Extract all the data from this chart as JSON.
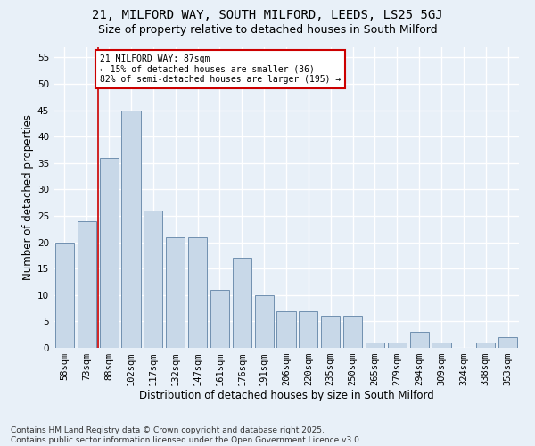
{
  "title1": "21, MILFORD WAY, SOUTH MILFORD, LEEDS, LS25 5GJ",
  "title2": "Size of property relative to detached houses in South Milford",
  "xlabel": "Distribution of detached houses by size in South Milford",
  "ylabel": "Number of detached properties",
  "categories": [
    "58sqm",
    "73sqm",
    "88sqm",
    "102sqm",
    "117sqm",
    "132sqm",
    "147sqm",
    "161sqm",
    "176sqm",
    "191sqm",
    "206sqm",
    "220sqm",
    "235sqm",
    "250sqm",
    "265sqm",
    "279sqm",
    "294sqm",
    "309sqm",
    "324sqm",
    "338sqm",
    "353sqm"
  ],
  "values": [
    20,
    24,
    36,
    45,
    26,
    21,
    21,
    11,
    17,
    10,
    7,
    7,
    6,
    6,
    1,
    1,
    3,
    1,
    0,
    1,
    2
  ],
  "bar_color": "#c8d8e8",
  "bar_edge_color": "#7090b0",
  "background_color": "#e8f0f8",
  "grid_color": "#ffffff",
  "annotation_text": "21 MILFORD WAY: 87sqm\n← 15% of detached houses are smaller (36)\n82% of semi-detached houses are larger (195) →",
  "annotation_box_color": "#ffffff",
  "annotation_box_edge_color": "#cc0000",
  "footer": "Contains HM Land Registry data © Crown copyright and database right 2025.\nContains public sector information licensed under the Open Government Licence v3.0.",
  "ylim": [
    0,
    57
  ],
  "title1_fontsize": 10,
  "title2_fontsize": 9,
  "xlabel_fontsize": 8.5,
  "ylabel_fontsize": 8.5,
  "tick_fontsize": 7.5,
  "footer_fontsize": 6.5,
  "annotation_fontsize": 7
}
